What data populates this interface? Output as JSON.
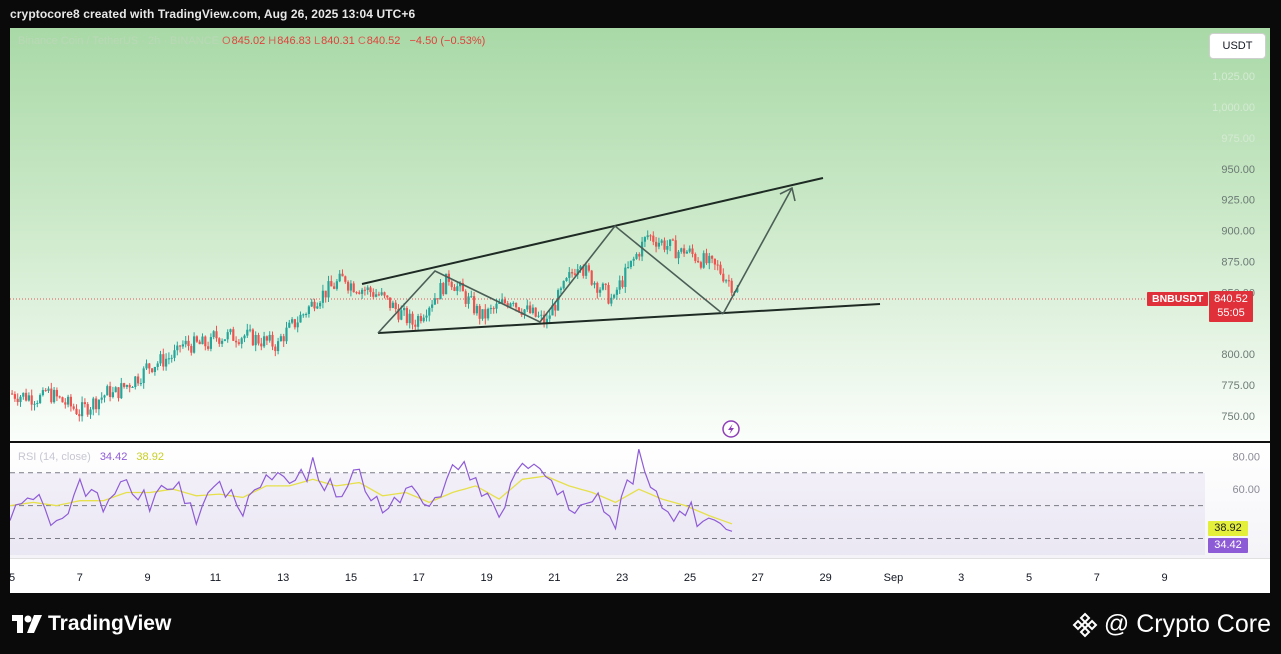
{
  "caption": "cryptocore8 created with TradingView.com, Aug 26, 2025 13:04 UTC+6",
  "legend": {
    "symbol": "Binance Coin / TetherUS · 2h · BINANCE",
    "open": "845.02",
    "high": "846.83",
    "low": "840.31",
    "close": "840.52",
    "change": "−4.50 (−0.53%)"
  },
  "currency_button": "USDT",
  "symbol_tag": "BNBUSDT",
  "last_price": "840.52",
  "countdown": "55:05",
  "rsi_legend": {
    "label": "RSI (14, close)",
    "rsi": "34.42",
    "ma": "38.92"
  },
  "rsi_tags": {
    "ma": "38.92",
    "rsi": "34.42"
  },
  "branding": {
    "tv_logo_text": "TradingView",
    "watermark": "@ Crypto Core"
  },
  "colors": {
    "up": "#26a69a",
    "down": "#ef5350",
    "rsi_line": "#8e5bd6",
    "rsi_ma": "#e6e04a",
    "trendline": "#1e2a24",
    "price_line": "#e0303a"
  },
  "icons": {
    "bolt": "lightning-icon",
    "tv": "tradingview-logo",
    "binance": "binance-diamond-icon"
  },
  "chart_data": [
    {
      "type": "candlestick",
      "title": "",
      "price_axis": {
        "ticks": [
          "1,025.00",
          "1,000.00",
          "975.00",
          "950.00",
          "925.00",
          "900.00",
          "875.00",
          "850.00",
          "800.00",
          "775.00",
          "750.00"
        ],
        "ylim": [
          740,
          1035
        ]
      },
      "time_axis": {
        "ticks": [
          "5",
          "7",
          "9",
          "11",
          "13",
          "15",
          "17",
          "19",
          "21",
          "23",
          "25",
          "27",
          "29",
          "Sep",
          "3",
          "5",
          "7",
          "9"
        ]
      },
      "price_path": [
        {
          "day": "Aug 5",
          "close": 764
        },
        {
          "day": "Aug 6",
          "close": 755
        },
        {
          "day": "Aug 7",
          "close": 770
        },
        {
          "day": "Aug 8",
          "close": 785
        },
        {
          "day": "Aug 9",
          "close": 800
        },
        {
          "day": "Aug 10",
          "close": 808
        },
        {
          "day": "Aug 11",
          "close": 815
        },
        {
          "day": "Aug 12",
          "close": 807
        },
        {
          "day": "Aug 13",
          "close": 840
        },
        {
          "day": "Aug 14",
          "close": 862
        },
        {
          "day": "Aug 15",
          "close": 848
        },
        {
          "day": "Aug 16",
          "close": 825
        },
        {
          "day": "Aug 17",
          "close": 858
        },
        {
          "day": "Aug 18",
          "close": 832
        },
        {
          "day": "Aug 19",
          "close": 846
        },
        {
          "day": "Aug 20",
          "close": 825
        },
        {
          "day": "Aug 21",
          "close": 878
        },
        {
          "day": "Aug 22",
          "close": 842
        },
        {
          "day": "Aug 23",
          "close": 896
        },
        {
          "day": "Aug 24",
          "close": 882
        },
        {
          "day": "Aug 25",
          "close": 870
        },
        {
          "day": "Aug 26",
          "close": 840.52
        }
      ],
      "drawings": {
        "upper_trendline": [
          [
            "Aug 15",
            850
          ],
          [
            "Aug 28",
            937
          ]
        ],
        "lower_trendline": [
          [
            "Aug 16",
            813
          ],
          [
            "Sep 1",
            836
          ]
        ],
        "zigzag": [
          [
            "Aug 16",
            813
          ],
          [
            "Aug 18",
            863
          ],
          [
            "Aug 20",
            822
          ],
          [
            "Aug 23",
            902
          ],
          [
            "Aug 26",
            829
          ]
        ],
        "projection": [
          [
            "Aug 26",
            829
          ],
          [
            "Aug 28",
            930
          ]
        ]
      }
    },
    {
      "type": "line",
      "title": "",
      "y_axis": {
        "ticks": [
          "80.00",
          "60.00"
        ],
        "ylim": [
          20,
          82
        ]
      },
      "bands": [
        70,
        50,
        30
      ],
      "series": [
        {
          "name": "RSI (14, close)",
          "values": [
            45,
            55,
            40,
            60,
            50,
            68,
            52,
            65,
            45,
            58,
            50,
            72,
            60,
            75,
            55,
            70,
            48,
            62,
            44,
            75,
            68,
            40,
            80,
            72,
            50,
            55,
            40,
            78,
            45,
            50,
            38,
            34.42
          ]
        },
        {
          "name": "MA",
          "values": [
            50,
            52,
            50,
            53,
            53,
            58,
            58,
            60,
            56,
            57,
            55,
            62,
            62,
            66,
            62,
            64,
            56,
            58,
            52,
            58,
            62,
            54,
            66,
            68,
            62,
            58,
            52,
            60,
            54,
            50,
            44,
            38.92
          ]
        }
      ]
    }
  ]
}
